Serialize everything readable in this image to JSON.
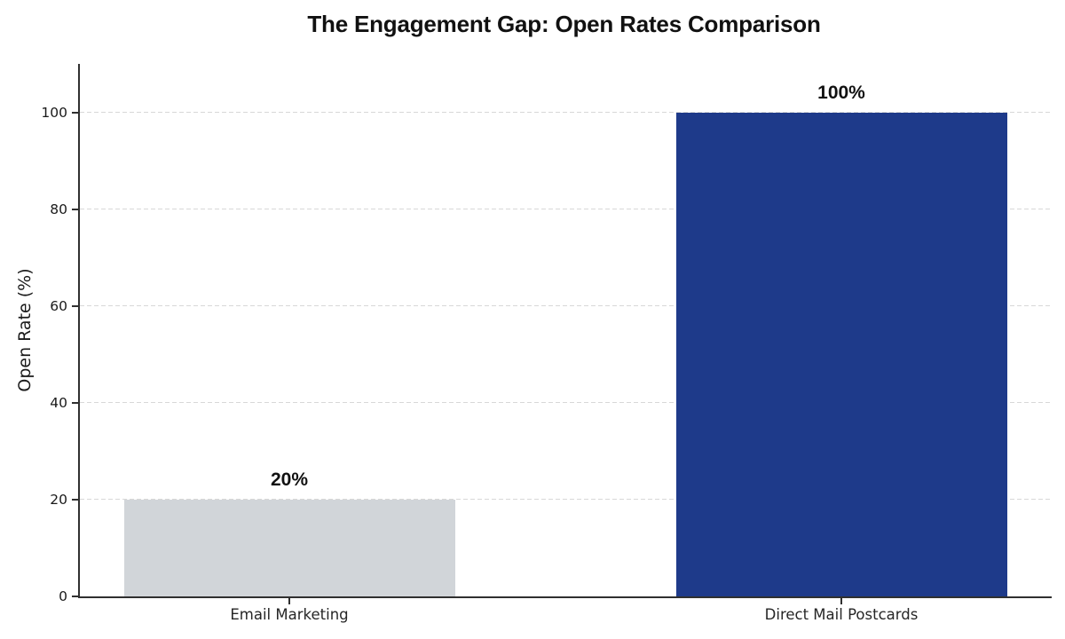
{
  "chart_data": {
    "type": "bar",
    "title": "The Engagement Gap: Open Rates Comparison",
    "categories": [
      "Email Marketing",
      "Direct Mail Postcards"
    ],
    "values": [
      20,
      100
    ],
    "value_labels": [
      "20%",
      "100%"
    ],
    "bar_colors": [
      "#d1d5d9",
      "#1e3a8a"
    ],
    "xlabel": "",
    "ylabel": "Open Rate (%)",
    "ylim": [
      0,
      110
    ],
    "yticks": [
      0,
      20,
      40,
      60,
      80,
      100
    ],
    "grid": "horizontal-dashed",
    "gridline_color": "#d8d8d8",
    "axis_color": "#303030",
    "text_color": "#1a1a1a",
    "background": "#ffffff",
    "legend": "none"
  }
}
